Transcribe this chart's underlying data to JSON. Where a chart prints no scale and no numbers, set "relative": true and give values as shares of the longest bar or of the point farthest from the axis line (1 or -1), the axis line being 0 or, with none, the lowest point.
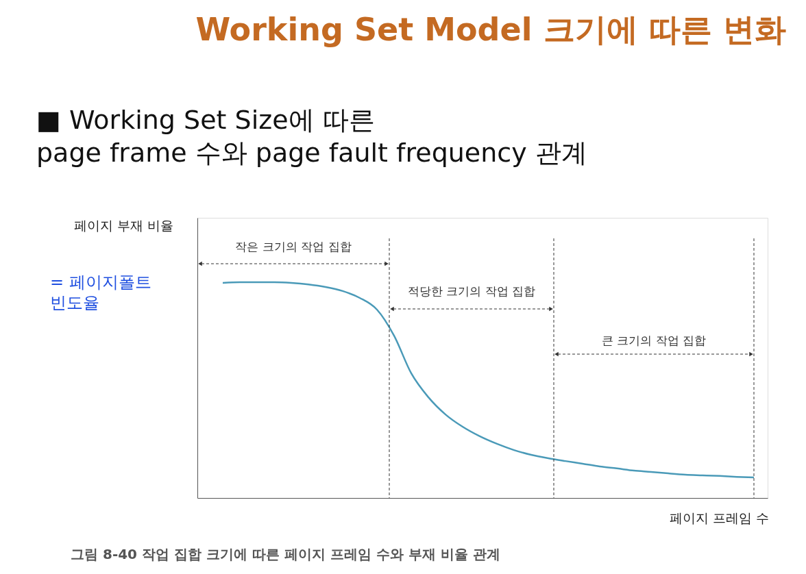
{
  "chart_data": {
    "type": "line",
    "relative": true,
    "title": "Working Set Model 크기에 따른 변화",
    "subtitle": "■ Working Set Size에 따른\npage frame 수와 page fault frequency 관계",
    "ylabel": "페이지 부재 비율",
    "xlabel": "페이지 프레임 수",
    "annotations": [
      "작은 크기의 작업 집합",
      "적당한 크기의 작업 집합",
      "큰 크기의 작업 집합",
      "= 페이지폴트\n빈도율",
      "그림 8-40  작업 집합 크기에 따른 페이지 프레임 수와 부재 비율 관계"
    ],
    "categories": [
      null,
      null,
      null,
      null,
      null,
      null,
      null,
      null,
      null,
      null,
      null,
      null,
      null,
      null,
      null,
      null,
      null,
      null,
      null,
      null,
      null,
      null,
      null,
      null,
      null,
      null,
      null,
      null,
      null,
      null,
      null,
      null
    ],
    "series": [
      {
        "color": "#4a9ab8",
        "values": [
          0.997,
          1.0,
          1.0,
          1.0,
          0.997,
          0.99,
          0.978,
          0.959,
          0.927,
          0.873,
          0.752,
          0.578,
          0.467,
          0.387,
          0.33,
          0.286,
          0.251,
          0.222,
          0.2,
          0.184,
          0.171,
          0.159,
          0.146,
          0.137,
          0.127,
          0.121,
          0.114,
          0.108,
          0.105,
          0.102,
          0.098,
          0.095
        ]
      }
    ]
  }
}
